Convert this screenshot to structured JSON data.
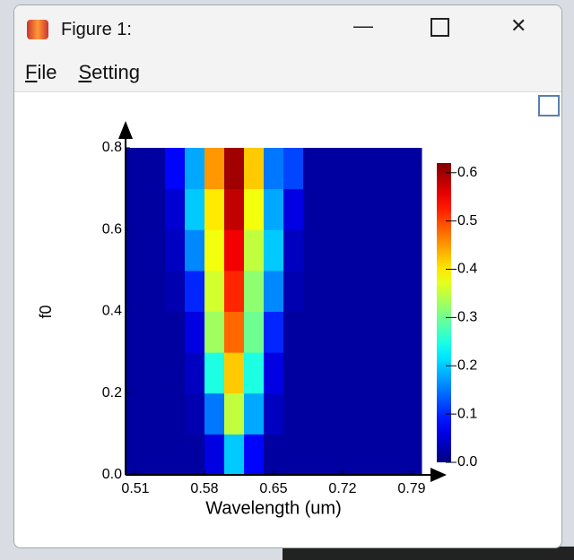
{
  "window": {
    "title": "Figure 1:"
  },
  "menu": {
    "items": [
      "File",
      "Setting"
    ]
  },
  "chart_data": {
    "type": "heatmap",
    "xlabel": "Wavelength (um)",
    "ylabel": "f0",
    "x": [
      0.51,
      0.53,
      0.55,
      0.57,
      0.59,
      0.61,
      0.63,
      0.65,
      0.67,
      0.69,
      0.71,
      0.73,
      0.75,
      0.77,
      0.79
    ],
    "y": [
      0.05,
      0.15,
      0.25,
      0.35,
      0.45,
      0.55,
      0.65,
      0.75
    ],
    "z": [
      [
        0.02,
        0.02,
        0.02,
        0.02,
        0.06,
        0.2,
        0.08,
        0.02,
        0.02,
        0.02,
        0.02,
        0.02,
        0.02,
        0.02,
        0.02
      ],
      [
        0.02,
        0.02,
        0.02,
        0.03,
        0.15,
        0.35,
        0.18,
        0.04,
        0.02,
        0.02,
        0.02,
        0.02,
        0.02,
        0.02,
        0.02
      ],
      [
        0.02,
        0.02,
        0.02,
        0.04,
        0.25,
        0.42,
        0.25,
        0.06,
        0.02,
        0.02,
        0.02,
        0.02,
        0.02,
        0.02,
        0.02
      ],
      [
        0.02,
        0.02,
        0.02,
        0.06,
        0.33,
        0.48,
        0.3,
        0.1,
        0.02,
        0.02,
        0.02,
        0.02,
        0.02,
        0.02,
        0.02
      ],
      [
        0.02,
        0.02,
        0.03,
        0.1,
        0.36,
        0.52,
        0.32,
        0.16,
        0.03,
        0.02,
        0.02,
        0.02,
        0.02,
        0.02,
        0.02
      ],
      [
        0.02,
        0.02,
        0.04,
        0.16,
        0.38,
        0.55,
        0.35,
        0.2,
        0.04,
        0.02,
        0.02,
        0.02,
        0.02,
        0.02,
        0.02
      ],
      [
        0.02,
        0.02,
        0.05,
        0.2,
        0.4,
        0.58,
        0.38,
        0.18,
        0.06,
        0.02,
        0.02,
        0.02,
        0.02,
        0.02,
        0.02
      ],
      [
        0.02,
        0.02,
        0.08,
        0.18,
        0.45,
        0.6,
        0.42,
        0.15,
        0.12,
        0.02,
        0.02,
        0.02,
        0.02,
        0.02,
        0.02
      ]
    ],
    "xlim": [
      0.5,
      0.8
    ],
    "xticks": [
      0.51,
      0.58,
      0.65,
      0.72,
      0.79
    ],
    "ylim": [
      0,
      0.8
    ],
    "yticks": [
      {
        "value": 0,
        "label": "0.0"
      },
      0.2,
      0.4,
      0.6,
      0.8
    ],
    "zlim": [
      0,
      0.62
    ],
    "zticks": [
      {
        "value": 0,
        "label": "0.0"
      },
      0.1,
      0.2,
      0.3,
      0.4,
      0.5,
      0.6
    ],
    "colormap": "jet"
  }
}
